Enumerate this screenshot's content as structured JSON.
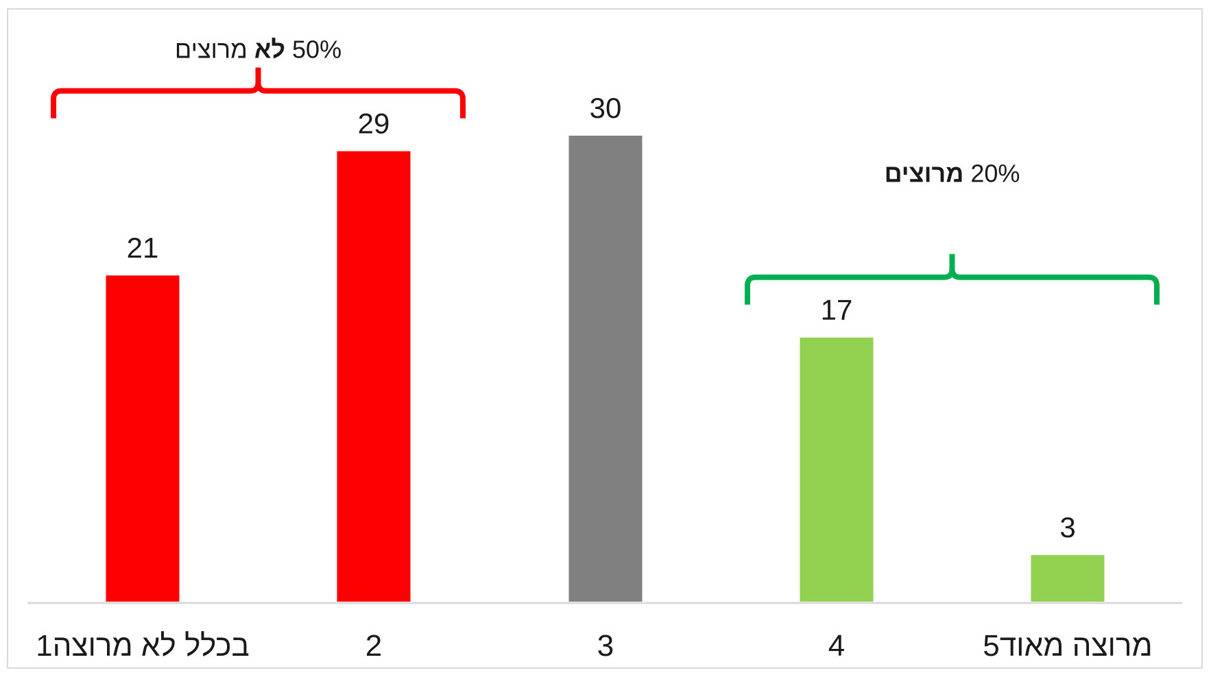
{
  "chart_data": {
    "type": "bar",
    "categories": [
      "1בכלל לא מרוצה",
      "2",
      "3",
      "4",
      "5מרוצה מאוד"
    ],
    "values": [
      21,
      29,
      30,
      17,
      3
    ],
    "bar_colors": [
      "#ff0000",
      "#ff0000",
      "#808080",
      "#92d050",
      "#92d050"
    ],
    "ylim": [
      0,
      33
    ],
    "grid": false,
    "legend": "none",
    "title": "",
    "xlabel": "",
    "ylabel": "",
    "annotations": [
      {
        "id": "not-satisfied",
        "percent": "50%",
        "bold": "לא",
        "word": "מרוצים",
        "color": "#ff0000",
        "spans": [
          0,
          1
        ]
      },
      {
        "id": "satisfied",
        "percent": "20%",
        "bold": "מרוצים",
        "word": "",
        "color": "#00b050",
        "spans": [
          3,
          4
        ]
      }
    ]
  }
}
